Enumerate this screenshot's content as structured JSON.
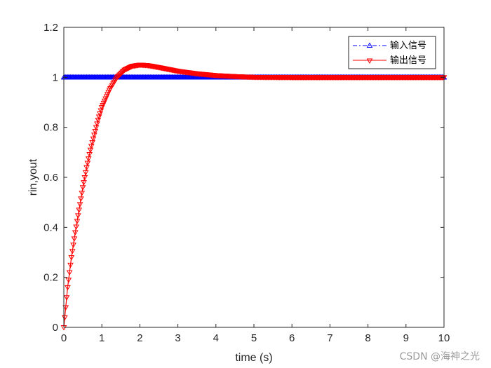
{
  "chart_data": {
    "type": "line",
    "title": "",
    "xlabel": "time (s)",
    "ylabel": "rin,yout",
    "xlim": [
      0,
      10
    ],
    "ylim": [
      0,
      1.2
    ],
    "x_ticks": [
      "0",
      "1",
      "2",
      "3",
      "4",
      "5",
      "6",
      "7",
      "8",
      "9",
      "10"
    ],
    "y_ticks": [
      "0",
      "0.2",
      "0.4",
      "0.6",
      "0.8",
      "1",
      "1.2"
    ],
    "grid": false,
    "legend_position": "top-right",
    "series": [
      {
        "name": "输入信号",
        "color": "#0000ff",
        "marker": "triangle-up",
        "x": [
          0,
          10
        ],
        "y": [
          1,
          1
        ]
      },
      {
        "name": "输出信号",
        "color": "#ff0000",
        "marker": "triangle-down",
        "x": [
          0,
          0.05,
          0.1,
          0.15,
          0.2,
          0.3,
          0.4,
          0.5,
          0.6,
          0.7,
          0.8,
          0.9,
          1.0,
          1.2,
          1.4,
          1.6,
          1.8,
          2.0,
          2.2,
          2.5,
          3.0,
          3.5,
          4.0,
          4.5,
          5.0,
          6.0,
          7.0,
          8.0,
          9.0,
          10.0
        ],
        "y": [
          0,
          0.08,
          0.16,
          0.22,
          0.28,
          0.38,
          0.47,
          0.56,
          0.64,
          0.71,
          0.77,
          0.83,
          0.88,
          0.95,
          1.0,
          1.03,
          1.045,
          1.05,
          1.048,
          1.04,
          1.025,
          1.015,
          1.008,
          1.004,
          1.001,
          1.0,
          1.0,
          1.0,
          1.0,
          1.0
        ]
      }
    ]
  },
  "watermark": "CSDN @海神之光"
}
